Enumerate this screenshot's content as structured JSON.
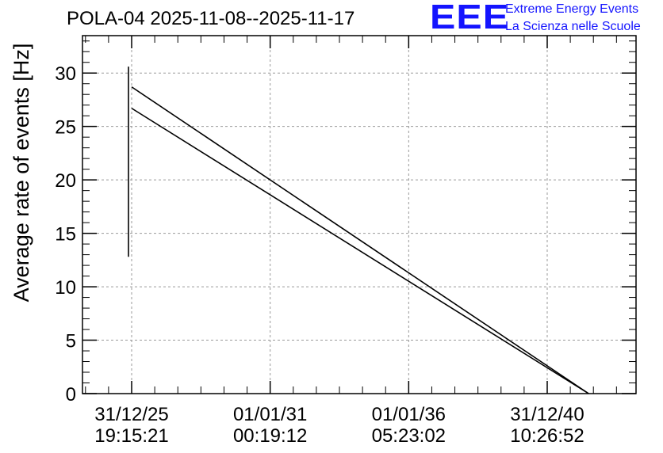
{
  "header": {
    "title": "POLA-04 2025-11-08--2025-11-17",
    "logo_text": "EEE",
    "logo_line1": "Extreme Energy Events",
    "logo_line2": "La Scienza nelle Scuole"
  },
  "colors": {
    "logo": "#1414ff",
    "series": "#000000",
    "grid": "#9a9a9a"
  },
  "chart_data": {
    "type": "line",
    "title": "POLA-04 2025-11-08--2025-11-17",
    "xlabel": "",
    "ylabel": "Average rate of events [Hz]",
    "ylim": [
      0,
      33.5
    ],
    "grid": true,
    "yticks": [
      0,
      5,
      10,
      15,
      20,
      25,
      30
    ],
    "xticks": [
      {
        "label1": "31/12/25",
        "label2": "19:15:21"
      },
      {
        "label1": "01/01/31",
        "label2": "00:19:12"
      },
      {
        "label1": "01/01/36",
        "label2": "05:23:02"
      },
      {
        "label1": "31/12/40",
        "label2": "10:26:52"
      }
    ],
    "error_bar": {
      "x": "31/12/25 19:15:21",
      "low": 12.8,
      "high": 30.6
    },
    "series": [
      {
        "values": [
          {
            "x": "31/12/25 19:15:21",
            "y": 28.7
          },
          {
            "x": "2042-07",
            "y": 0.0
          }
        ]
      },
      {
        "values": [
          {
            "x": "31/12/25 19:15:21",
            "y": 26.7
          },
          {
            "x": "2042-07",
            "y": 0.0
          }
        ]
      }
    ]
  }
}
